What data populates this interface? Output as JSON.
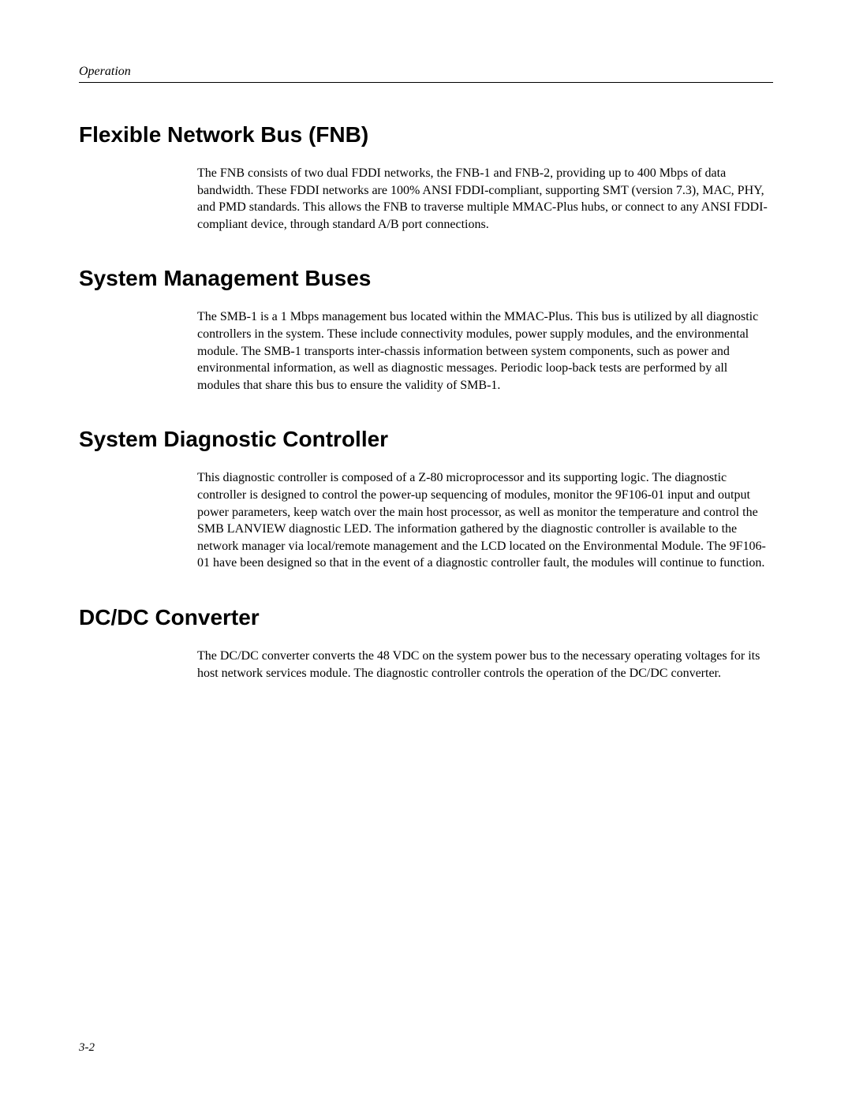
{
  "header": {
    "label": "Operation"
  },
  "sections": [
    {
      "heading": "Flexible Network Bus (FNB)",
      "body": "The FNB consists of two dual FDDI networks, the FNB-1 and FNB-2, providing up to 400 Mbps of data bandwidth. These FDDI networks are 100% ANSI FDDI-compliant, supporting SMT (version 7.3), MAC, PHY, and PMD standards. This allows the FNB to traverse multiple MMAC-Plus hubs, or connect to any ANSI FDDI-compliant device, through standard A/B port connections."
    },
    {
      "heading": "System Management Buses",
      "body": "The SMB-1 is a 1 Mbps management bus located within the MMAC-Plus. This bus is utilized by all diagnostic controllers in the system. These include connectivity modules, power supply modules, and the environmental module. The SMB-1 transports inter-chassis information between system components, such as power and environmental information, as well as diagnostic messages. Periodic loop-back tests are performed by all modules that share this bus to ensure the validity of SMB-1."
    },
    {
      "heading": "System Diagnostic Controller",
      "body": "This diagnostic controller is composed of a Z-80 microprocessor and its supporting logic. The diagnostic controller is designed to control the power-up sequencing of modules, monitor the 9F106-01 input and output power parameters, keep watch over the main host processor, as well as monitor the temperature and control the SMB LANVIEW diagnostic LED. The information gathered by the diagnostic controller is available to the network manager via local/remote management and the LCD located on the Environmental Module. The 9F106-01 have been designed so that in the event of a diagnostic controller fault, the modules will continue to function."
    },
    {
      "heading": "DC/DC Converter",
      "body": "The DC/DC converter converts the 48 VDC on the system power bus to the necessary operating voltages for its host network services module. The diagnostic controller controls the operation of the DC/DC converter."
    }
  ],
  "footer": {
    "page_number": "3-2"
  }
}
